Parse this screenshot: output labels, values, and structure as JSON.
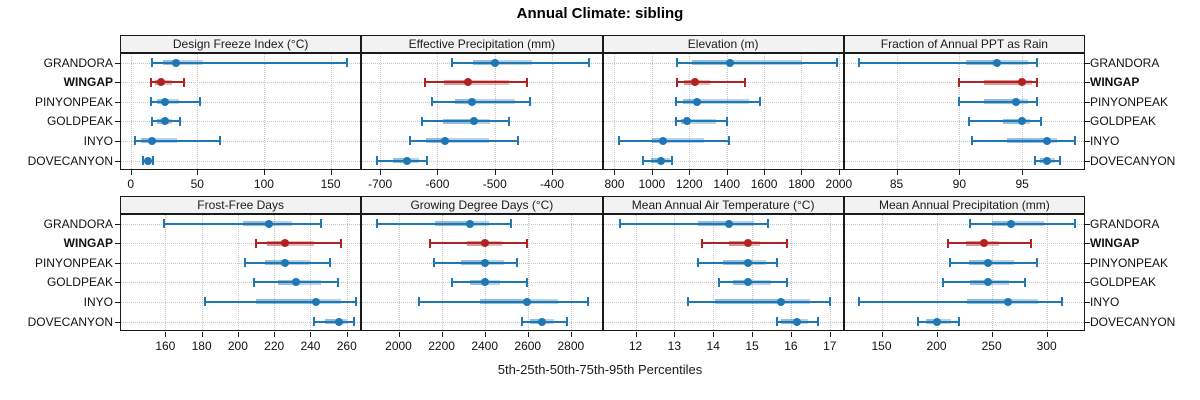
{
  "title": "Annual Climate: sibling",
  "xlabel": "5th-25th-50th-75th-95th Percentiles",
  "sites": [
    "GRANDORA",
    "WINGAP",
    "PINYONPEAK",
    "GOLDPEAK",
    "INYO",
    "DOVECANYON"
  ],
  "highlight_site": "WINGAP",
  "colors": {
    "series": "#1f77b4",
    "highlight": "#b22222",
    "strip_bg": "#f2f2f2",
    "grid": "#c3c3c3",
    "border": "#1a1a1a"
  },
  "chart_data": {
    "type": "dotplot",
    "subtype": "percentile-intervals",
    "percentile_labels": [
      "5th",
      "25th",
      "50th",
      "75th",
      "95th"
    ],
    "legend_position": "none",
    "grid": "dotted",
    "panels_per_row": 4,
    "panels": [
      {
        "title": "Design Freeze Index (°C)",
        "domain": [
          -8,
          173
        ],
        "ticks": [
          0,
          50,
          100,
          150
        ],
        "series": [
          {
            "name": "GRANDORA",
            "p": [
              16,
              24,
              34,
              54,
              162
            ]
          },
          {
            "name": "WINGAP",
            "p": [
              15,
              18,
              23,
              31,
              40
            ]
          },
          {
            "name": "PINYONPEAK",
            "p": [
              15,
              20,
              26,
              36,
              52
            ]
          },
          {
            "name": "GOLDPEAK",
            "p": [
              16,
              20,
              26,
              31,
              37
            ]
          },
          {
            "name": "INYO",
            "p": [
              3,
              8,
              16,
              35,
              67
            ]
          },
          {
            "name": "DOVECANYON",
            "p": [
              9,
              11,
              13,
              15,
              17
            ]
          }
        ]
      },
      {
        "title": "Effective Precipitation (mm)",
        "domain": [
          -733,
          -312
        ],
        "ticks": [
          -700,
          -600,
          -500,
          -400
        ],
        "series": [
          {
            "name": "GRANDORA",
            "p": [
              -575,
              -538,
              -500,
              -435,
              -335
            ]
          },
          {
            "name": "WINGAP",
            "p": [
              -621,
              -589,
              -546,
              -475,
              -443
            ]
          },
          {
            "name": "PINYONPEAK",
            "p": [
              -610,
              -570,
              -540,
              -465,
              -438
            ]
          },
          {
            "name": "GOLDPEAK",
            "p": [
              -627,
              -590,
              -537,
              -508,
              -475
            ]
          },
          {
            "name": "INYO",
            "p": [
              -648,
              -620,
              -587,
              -510,
              -460
            ]
          },
          {
            "name": "DOVECANYON",
            "p": [
              -706,
              -678,
              -653,
              -633,
              -618
            ]
          }
        ]
      },
      {
        "title": "Elevation (m)",
        "domain": [
          736,
          2026
        ],
        "ticks": [
          800,
          1000,
          1200,
          1400,
          1600,
          1800,
          2000
        ],
        "series": [
          {
            "name": "GRANDORA",
            "p": [
              1135,
              1215,
              1420,
              1805,
              1990
            ]
          },
          {
            "name": "WINGAP",
            "p": [
              1135,
              1170,
              1230,
              1310,
              1500
            ]
          },
          {
            "name": "PINYONPEAK",
            "p": [
              1130,
              1165,
              1240,
              1520,
              1580
            ]
          },
          {
            "name": "GOLDPEAK",
            "p": [
              1130,
              1155,
              1190,
              1345,
              1400
            ]
          },
          {
            "name": "INYO",
            "p": [
              825,
              1000,
              1060,
              1280,
              1410
            ]
          },
          {
            "name": "DOVECANYON",
            "p": [
              955,
              995,
              1050,
              1095,
              1110
            ]
          }
        ]
      },
      {
        "title": "Fraction of Annual PPT as Rain",
        "domain": [
          80.8,
          100
        ],
        "ticks": [
          85,
          90,
          95
        ],
        "series": [
          {
            "name": "GRANDORA",
            "p": [
              82,
              90.5,
              93,
              95.5,
              96.2
            ]
          },
          {
            "name": "WINGAP",
            "p": [
              90,
              92,
              95,
              95.8,
              96.2
            ]
          },
          {
            "name": "PINYONPEAK",
            "p": [
              90,
              92,
              94.5,
              95.5,
              96.2
            ]
          },
          {
            "name": "GOLDPEAK",
            "p": [
              90.8,
              93.5,
              95,
              95.6,
              96.5
            ]
          },
          {
            "name": "INYO",
            "p": [
              91,
              93.8,
              97,
              97.8,
              99.2
            ]
          },
          {
            "name": "DOVECANYON",
            "p": [
              96,
              96.4,
              97,
              97.6,
              98
            ]
          }
        ]
      },
      {
        "title": "Frost-Free Days",
        "domain": [
          135,
          268
        ],
        "ticks": [
          160,
          180,
          200,
          220,
          240,
          260
        ],
        "series": [
          {
            "name": "GRANDORA",
            "p": [
              159,
              203,
              217,
              230,
              246
            ]
          },
          {
            "name": "WINGAP",
            "p": [
              210,
              216,
              226,
              242,
              257
            ]
          },
          {
            "name": "PINYONPEAK",
            "p": [
              204,
              215,
              226,
              240,
              251
            ]
          },
          {
            "name": "GOLDPEAK",
            "p": [
              209,
              222,
              232,
              246,
              255
            ]
          },
          {
            "name": "INYO",
            "p": [
              182,
              210,
              243,
              257,
              265
            ]
          },
          {
            "name": "DOVECANYON",
            "p": [
              242,
              248,
              256,
              260,
              264
            ]
          }
        ]
      },
      {
        "title": "Growing Degree Days (°C)",
        "domain": [
          1827,
          2947
        ],
        "ticks": [
          2000,
          2200,
          2400,
          2600,
          2800
        ],
        "series": [
          {
            "name": "GRANDORA",
            "p": [
              1900,
              2170,
              2330,
              2420,
              2520
            ]
          },
          {
            "name": "WINGAP",
            "p": [
              2145,
              2320,
              2400,
              2480,
              2595
            ]
          },
          {
            "name": "PINYONPEAK",
            "p": [
              2165,
              2290,
              2400,
              2490,
              2550
            ]
          },
          {
            "name": "GOLDPEAK",
            "p": [
              2250,
              2330,
              2400,
              2470,
              2595
            ]
          },
          {
            "name": "INYO",
            "p": [
              2095,
              2380,
              2595,
              2740,
              2880
            ]
          },
          {
            "name": "DOVECANYON",
            "p": [
              2575,
              2610,
              2665,
              2720,
              2780
            ]
          }
        ]
      },
      {
        "title": "Mean Annual Air Temperature (°C)",
        "domain": [
          11.15,
          17.36
        ],
        "ticks": [
          12,
          13,
          14,
          15,
          16,
          17
        ],
        "series": [
          {
            "name": "GRANDORA",
            "p": [
              11.6,
              13.6,
              14.4,
              15.05,
              15.4
            ]
          },
          {
            "name": "WINGAP",
            "p": [
              13.7,
              14.4,
              14.9,
              15.2,
              15.9
            ]
          },
          {
            "name": "PINYONPEAK",
            "p": [
              13.6,
              14.25,
              14.9,
              15.35,
              15.65
            ]
          },
          {
            "name": "GOLDPEAK",
            "p": [
              14.15,
              14.5,
              14.9,
              15.5,
              15.9
            ]
          },
          {
            "name": "INYO",
            "p": [
              13.35,
              14.05,
              15.75,
              16.5,
              17.0
            ]
          },
          {
            "name": "DOVECANYON",
            "p": [
              15.65,
              15.75,
              16.15,
              16.45,
              16.7
            ]
          }
        ]
      },
      {
        "title": "Mean Annual Precipitation (mm)",
        "domain": [
          115.7,
          334.8
        ],
        "ticks": [
          150,
          200,
          250,
          300
        ],
        "series": [
          {
            "name": "GRANDORA",
            "p": [
              230,
              250,
              268,
              298,
              326
            ]
          },
          {
            "name": "WINGAP",
            "p": [
              210,
              227,
              243,
              257,
              286
            ]
          },
          {
            "name": "PINYONPEAK",
            "p": [
              212,
              229,
              247,
              270,
              291
            ]
          },
          {
            "name": "GOLDPEAK",
            "p": [
              206,
              230,
              247,
              266,
              280
            ]
          },
          {
            "name": "INYO",
            "p": [
              130,
              228,
              265,
              292,
              314
            ]
          },
          {
            "name": "DOVECANYON",
            "p": [
              183,
              190,
              200,
              213,
              220
            ]
          }
        ]
      }
    ]
  }
}
